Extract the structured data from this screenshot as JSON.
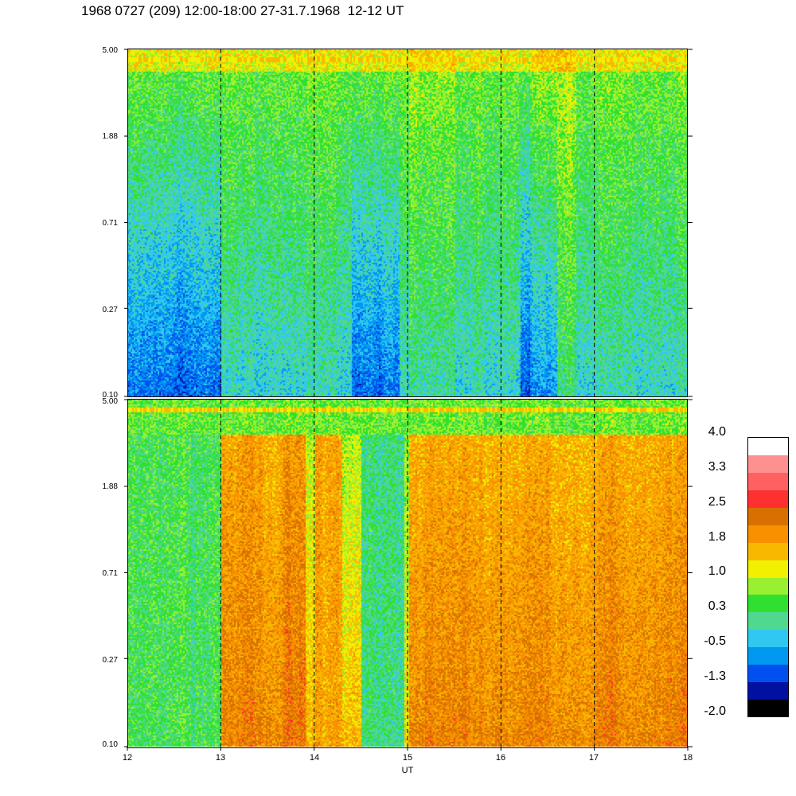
{
  "title": "1968 0727 (209) 12:00-18:00 27-31.7.1968  12-12 UT",
  "chart_data": [
    {
      "type": "heatmap",
      "panel": "top",
      "x_range": [
        12,
        18
      ],
      "y_scale": "log",
      "y_ticks": [
        "5.00",
        "1.88",
        "0.71",
        "0.27",
        "0.10"
      ],
      "y_tick_values": [
        5.0,
        1.88,
        0.71,
        0.27,
        0.1
      ],
      "x_markers": [
        13,
        14,
        15,
        16,
        17
      ],
      "description_levels": "mostly low values (blue/cyan), green bands near top, yellow line at 5.00"
    },
    {
      "type": "heatmap",
      "panel": "bottom",
      "x_range": [
        12,
        18
      ],
      "y_scale": "log",
      "y_ticks": [
        "5.00",
        "1.88",
        "0.71",
        "0.27",
        "0.10"
      ],
      "y_tick_values": [
        5.0,
        1.88,
        0.71,
        0.27,
        0.1
      ],
      "x_markers": [
        13,
        14,
        15,
        16,
        17
      ],
      "x_ticks": [
        "12",
        "13",
        "14",
        "15",
        "16",
        "17",
        "18"
      ],
      "xlabel": "UT",
      "description_levels": "mostly high values (orange/yellow) with cyan/green dips"
    }
  ],
  "colorbar": {
    "labels": [
      "4.0",
      "3.3",
      "2.5",
      "1.8",
      "1.0",
      "0.3",
      "-0.5",
      "-1.3",
      "-2.0"
    ],
    "colors": [
      "#000000",
      "#0010a0",
      "#0050f0",
      "#0098f0",
      "#30c8f0",
      "#50d890",
      "#30e030",
      "#98f030",
      "#f0f000",
      "#f8b800",
      "#f89000",
      "#d87000",
      "#ff3030",
      "#ff6060",
      "#ff9090",
      "#ffffff"
    ]
  }
}
